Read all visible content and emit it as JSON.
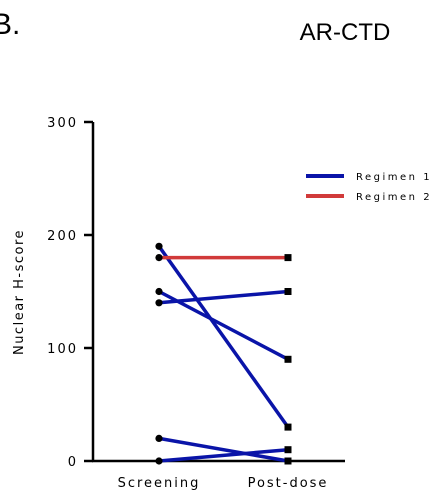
{
  "panel_letter": "B.",
  "chart_data": {
    "type": "line",
    "title": "AR-CTD",
    "xlabel": "",
    "ylabel": "Nuclear H-score",
    "categories": [
      "Screening",
      "Post-dose"
    ],
    "ylim": [
      0,
      300
    ],
    "yticks": [
      0,
      100,
      200,
      300
    ],
    "grid": false,
    "legend_position": "top-right",
    "legend": [
      {
        "name": "Regimen 1",
        "color": "#0a14a8"
      },
      {
        "name": "Regimen 2",
        "color": "#d13a3a"
      }
    ],
    "series": [
      {
        "group": "Regimen 1",
        "values": [
          190,
          30
        ]
      },
      {
        "group": "Regimen 1",
        "values": [
          150,
          90
        ]
      },
      {
        "group": "Regimen 1",
        "values": [
          140,
          150
        ]
      },
      {
        "group": "Regimen 1",
        "values": [
          20,
          0
        ]
      },
      {
        "group": "Regimen 1",
        "values": [
          0,
          10
        ]
      },
      {
        "group": "Regimen 2",
        "values": [
          180,
          180
        ]
      }
    ]
  }
}
